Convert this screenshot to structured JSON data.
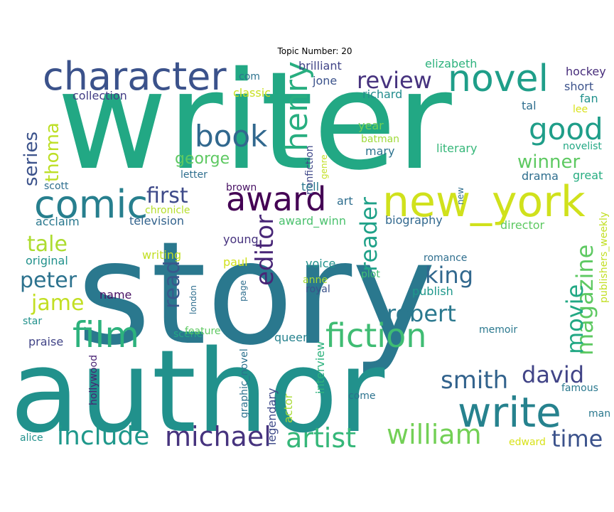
{
  "chart_data": {
    "type": "wordcloud",
    "title": "Topic Number: 20",
    "words": [
      {
        "text": "writer",
        "color": "#22a884",
        "vertical": false
      },
      {
        "text": "story",
        "color": "#2a788e",
        "vertical": false
      },
      {
        "text": "author",
        "color": "#21918c",
        "vertical": false
      },
      {
        "text": "character",
        "color": "#3b528b",
        "vertical": false
      },
      {
        "text": "novel",
        "color": "#1f9e89",
        "vertical": false
      },
      {
        "text": "new_york",
        "color": "#d0e11c",
        "vertical": false
      },
      {
        "text": "comic",
        "color": "#277f8e",
        "vertical": false
      },
      {
        "text": "award",
        "color": "#440154",
        "vertical": false
      },
      {
        "text": "write",
        "color": "#26828e",
        "vertical": false
      },
      {
        "text": "film",
        "color": "#2db27d",
        "vertical": false
      },
      {
        "text": "fiction",
        "color": "#3fbc73",
        "vertical": false
      },
      {
        "text": "book",
        "color": "#31688e",
        "vertical": false
      },
      {
        "text": "review",
        "color": "#46327e",
        "vertical": false
      },
      {
        "text": "good",
        "color": "#1f9e89",
        "vertical": false
      },
      {
        "text": "henry",
        "color": "#28ae80",
        "vertical": true
      },
      {
        "text": "magazine",
        "color": "#5ec962",
        "vertical": true
      },
      {
        "text": "artist",
        "color": "#35b779",
        "vertical": false
      },
      {
        "text": "william",
        "color": "#73d056",
        "vertical": false
      },
      {
        "text": "michael",
        "color": "#46337e",
        "vertical": false
      },
      {
        "text": "include",
        "color": "#1f988b",
        "vertical": false
      },
      {
        "text": "david",
        "color": "#414487",
        "vertical": false
      },
      {
        "text": "time",
        "color": "#3b528b",
        "vertical": false
      },
      {
        "text": "smith",
        "color": "#33638d",
        "vertical": false
      },
      {
        "text": "movie",
        "color": "#22a884",
        "vertical": true
      },
      {
        "text": "robert",
        "color": "#2a788e",
        "vertical": false
      },
      {
        "text": "king",
        "color": "#31688e",
        "vertical": false
      },
      {
        "text": "editor",
        "color": "#482677",
        "vertical": true
      },
      {
        "text": "reader",
        "color": "#1fa188",
        "vertical": true
      },
      {
        "text": "read",
        "color": "#38588c",
        "vertical": true
      },
      {
        "text": "first",
        "color": "#3e4a89",
        "vertical": false
      },
      {
        "text": "peter",
        "color": "#2c728e",
        "vertical": false
      },
      {
        "text": "jame",
        "color": "#c2df23",
        "vertical": false
      },
      {
        "text": "tale",
        "color": "#addc30",
        "vertical": false
      },
      {
        "text": "series",
        "color": "#3b528b",
        "vertical": true
      },
      {
        "text": "thoma",
        "color": "#bddf26",
        "vertical": true
      },
      {
        "text": "winner",
        "color": "#5ec962",
        "vertical": false
      },
      {
        "text": "george",
        "color": "#5ec962",
        "vertical": false
      },
      {
        "text": "collection",
        "color": "#433e85",
        "vertical": false
      },
      {
        "text": "com",
        "color": "#2c728e",
        "vertical": false
      },
      {
        "text": "classic",
        "color": "#c8e020",
        "vertical": false
      },
      {
        "text": "brilliant",
        "color": "#414487",
        "vertical": false
      },
      {
        "text": "jone",
        "color": "#3b528b",
        "vertical": false
      },
      {
        "text": "richard",
        "color": "#228c8d",
        "vertical": false
      },
      {
        "text": "elizabeth",
        "color": "#2db27d",
        "vertical": false
      },
      {
        "text": "hockey",
        "color": "#472d7b",
        "vertical": false
      },
      {
        "text": "short",
        "color": "#3b528b",
        "vertical": false
      },
      {
        "text": "fan",
        "color": "#21918c",
        "vertical": false
      },
      {
        "text": "lee",
        "color": "#d8e219",
        "vertical": false
      },
      {
        "text": "tal",
        "color": "#2e6e8e",
        "vertical": false
      },
      {
        "text": "year",
        "color": "#73d056",
        "vertical": false
      },
      {
        "text": "batman",
        "color": "#9fda3a",
        "vertical": false
      },
      {
        "text": "mary",
        "color": "#2c728e",
        "vertical": false
      },
      {
        "text": "literary",
        "color": "#35b779",
        "vertical": false
      },
      {
        "text": "novelist",
        "color": "#22a884",
        "vertical": false
      },
      {
        "text": "drama",
        "color": "#2e6e8e",
        "vertical": false
      },
      {
        "text": "great",
        "color": "#27ad81",
        "vertical": false
      },
      {
        "text": "nonfiction",
        "color": "#3f4889",
        "vertical": true
      },
      {
        "text": "genre",
        "color": "#c2df23",
        "vertical": true
      },
      {
        "text": "letter",
        "color": "#2e6e8e",
        "vertical": false
      },
      {
        "text": "scott",
        "color": "#2e6e8e",
        "vertical": false
      },
      {
        "text": "brown",
        "color": "#471063",
        "vertical": false
      },
      {
        "text": "tell",
        "color": "#2a788e",
        "vertical": false
      },
      {
        "text": "art",
        "color": "#2e6e8e",
        "vertical": false
      },
      {
        "text": "new",
        "color": "#2e6e8e",
        "vertical": true
      },
      {
        "text": "chronicle",
        "color": "#b5de2b",
        "vertical": false
      },
      {
        "text": "acclaim",
        "color": "#2a788e",
        "vertical": false
      },
      {
        "text": "television",
        "color": "#33638d",
        "vertical": false
      },
      {
        "text": "young",
        "color": "#46327e",
        "vertical": false
      },
      {
        "text": "award_winn",
        "color": "#4ac16d",
        "vertical": false
      },
      {
        "text": "biography",
        "color": "#31688e",
        "vertical": false
      },
      {
        "text": "director",
        "color": "#5ec962",
        "vertical": false
      },
      {
        "text": "publishers_weekly",
        "color": "#c2df23",
        "vertical": true
      },
      {
        "text": "original",
        "color": "#21918c",
        "vertical": false
      },
      {
        "text": "writing",
        "color": "#c2df23",
        "vertical": false
      },
      {
        "text": "paul",
        "color": "#d0e11c",
        "vertical": false
      },
      {
        "text": "voice",
        "color": "#21918c",
        "vertical": false
      },
      {
        "text": "romance",
        "color": "#2e6e8e",
        "vertical": false
      },
      {
        "text": "plot",
        "color": "#3fbc73",
        "vertical": false
      },
      {
        "text": "anne",
        "color": "#a8db34",
        "vertical": false
      },
      {
        "text": "royal",
        "color": "#3b528b",
        "vertical": false
      },
      {
        "text": "publish",
        "color": "#1f988b",
        "vertical": false
      },
      {
        "text": "name",
        "color": "#471063",
        "vertical": false
      },
      {
        "text": "london",
        "color": "#2e6e8e",
        "vertical": true
      },
      {
        "text": "page",
        "color": "#2e6e8e",
        "vertical": true
      },
      {
        "text": "star",
        "color": "#21918c",
        "vertical": false
      },
      {
        "text": "scene",
        "color": "#22a884",
        "vertical": false
      },
      {
        "text": "feature",
        "color": "#5ec962",
        "vertical": false
      },
      {
        "text": "queen",
        "color": "#26828e",
        "vertical": false
      },
      {
        "text": "memoir",
        "color": "#2a788e",
        "vertical": false
      },
      {
        "text": "praise",
        "color": "#414487",
        "vertical": false
      },
      {
        "text": "hollywood",
        "color": "#482173",
        "vertical": true
      },
      {
        "text": "graphic_novel",
        "color": "#2c728e",
        "vertical": true
      },
      {
        "text": "legendary",
        "color": "#3e4a89",
        "vertical": true
      },
      {
        "text": "interview",
        "color": "#2db27d",
        "vertical": true
      },
      {
        "text": "actor",
        "color": "#a8db34",
        "vertical": true
      },
      {
        "text": "come",
        "color": "#2c728e",
        "vertical": false
      },
      {
        "text": "famous",
        "color": "#2a788e",
        "vertical": false
      },
      {
        "text": "man",
        "color": "#2a788e",
        "vertical": false
      },
      {
        "text": "alice",
        "color": "#21918c",
        "vertical": false
      },
      {
        "text": "edward",
        "color": "#d8e219",
        "vertical": false
      }
    ]
  }
}
